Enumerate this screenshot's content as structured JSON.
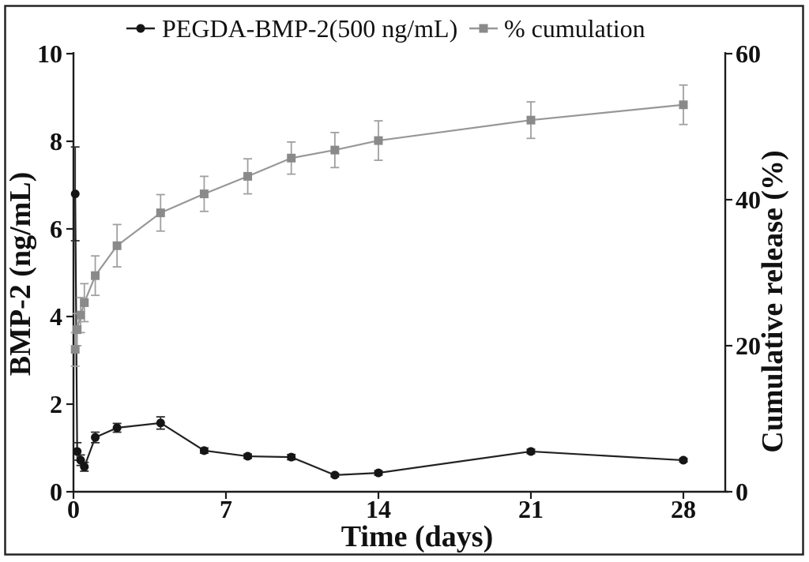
{
  "figure": {
    "background": "#ffffff",
    "border_color": "#242424",
    "axis_color": "#1c1c1c"
  },
  "chart_data": {
    "type": "line",
    "title": "",
    "xlabel": "Time (days)",
    "ylabel_left": "BMP-2 (ng/mL)",
    "ylabel_right": "Cumulative release (%)",
    "xlim": [
      0,
      30
    ],
    "ylim_left": [
      0,
      10
    ],
    "ylim_right": [
      0,
      60
    ],
    "x_ticks": [
      0,
      7,
      14,
      21,
      28
    ],
    "left_ticks": [
      0,
      2,
      4,
      6,
      8,
      10
    ],
    "right_ticks": [
      0,
      20,
      40,
      60
    ],
    "grid": false,
    "legend_position": "top-center",
    "series": [
      {
        "name": "PEGDA-BMP-2(500 ng/mL)",
        "axis": "left",
        "marker": "circle",
        "color": "#151515",
        "line_color": "#222222",
        "error_color": "#2e2e2e",
        "x": [
          0.08,
          0.17,
          0.33,
          0.5,
          1,
          2,
          4,
          6,
          8,
          10,
          12,
          14,
          21,
          28
        ],
        "y": [
          6.8,
          0.92,
          0.72,
          0.57,
          1.24,
          1.46,
          1.57,
          0.94,
          0.81,
          0.79,
          0.38,
          0.43,
          0.92,
          0.72
        ],
        "err": [
          1.07,
          0.2,
          0.12,
          0.1,
          0.12,
          0.1,
          0.14,
          0.06,
          0.05,
          0.06,
          0.04,
          0.05,
          0.05,
          0.04
        ]
      },
      {
        "name": "% cumulation",
        "axis": "right",
        "marker": "square",
        "color": "#8a8a8a",
        "line_color": "#979797",
        "error_color": "#a0a0a0",
        "x": [
          0.08,
          0.17,
          0.33,
          0.5,
          1,
          2,
          4,
          6,
          8,
          10,
          12,
          14,
          21,
          28
        ],
        "y": [
          19.5,
          22.2,
          24.2,
          25.9,
          29.6,
          33.7,
          38.2,
          40.8,
          43.2,
          45.7,
          46.8,
          48.1,
          50.9,
          53.0
        ],
        "err": [
          2.3,
          2.2,
          2.4,
          2.6,
          2.7,
          2.9,
          2.5,
          2.4,
          2.4,
          2.2,
          2.4,
          2.7,
          2.5,
          2.7
        ]
      }
    ]
  }
}
